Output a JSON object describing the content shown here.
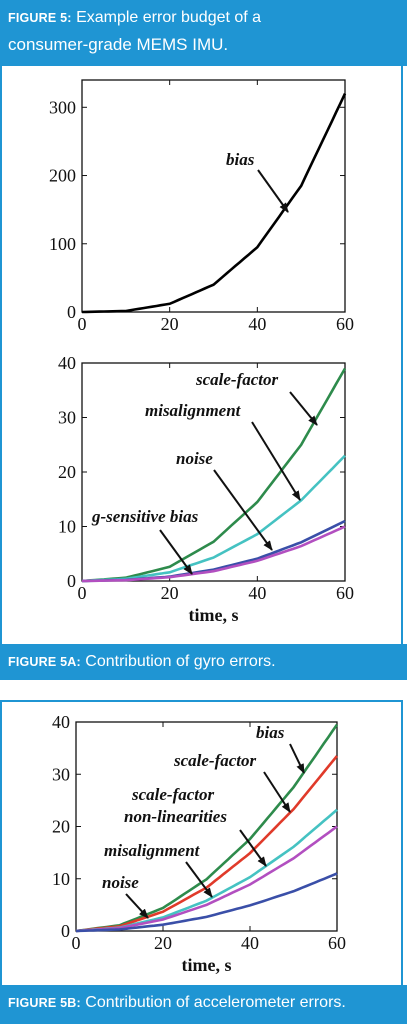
{
  "figure": {
    "label": "FIGURE 5:",
    "title_line1": "Example error budget of a",
    "title_line2": "consumer-grade MEMS IMU."
  },
  "captions": {
    "fig5a_label": "FIGURE 5A:",
    "fig5a_text": "Contribution of gyro errors.",
    "fig5b_label": "FIGURE 5B:",
    "fig5b_text": "Contribution of accelerometer errors."
  },
  "chart_data": [
    {
      "type": "line",
      "xlim": [
        0,
        60
      ],
      "ylim": [
        0,
        340
      ],
      "xticks": [
        "0",
        "20",
        "40",
        "60"
      ],
      "yticks": [
        "0",
        "100",
        "200",
        "300"
      ],
      "xlabel": "",
      "ylabel": "",
      "series": [
        {
          "name": "bias",
          "color": "#000000",
          "x": [
            0,
            10,
            20,
            30,
            40,
            50,
            60
          ],
          "y": [
            0,
            1.5,
            12,
            40,
            95,
            185,
            320
          ]
        }
      ]
    },
    {
      "type": "line",
      "xlim": [
        0,
        60
      ],
      "ylim": [
        0,
        40
      ],
      "xticks": [
        "0",
        "20",
        "40",
        "60"
      ],
      "yticks": [
        "0",
        "10",
        "20",
        "30",
        "40"
      ],
      "xlabel": "time, s",
      "ylabel": "",
      "series": [
        {
          "name": "scale-factor",
          "color": "#2e8b4c",
          "x": [
            0,
            10,
            20,
            30,
            40,
            50,
            60
          ],
          "y": [
            0,
            0.6,
            2.6,
            7.2,
            14.5,
            25,
            39
          ]
        },
        {
          "name": "misalignment",
          "color": "#45c2c2",
          "x": [
            0,
            10,
            20,
            30,
            40,
            50,
            60
          ],
          "y": [
            0,
            0.4,
            1.6,
            4.3,
            8.6,
            14.8,
            23
          ]
        },
        {
          "name": "noise",
          "color": "#3a4fa8",
          "x": [
            0,
            10,
            20,
            30,
            40,
            50,
            60
          ],
          "y": [
            0,
            0.2,
            0.8,
            2.1,
            4.1,
            7.1,
            11
          ]
        },
        {
          "name": "g-sensitive bias",
          "color": "#b24fc0",
          "x": [
            0,
            10,
            20,
            30,
            40,
            50,
            60
          ],
          "y": [
            0,
            0.15,
            0.7,
            1.8,
            3.7,
            6.4,
            10
          ]
        }
      ]
    },
    {
      "type": "line",
      "xlim": [
        0,
        60
      ],
      "ylim": [
        0,
        40
      ],
      "xticks": [
        "0",
        "20",
        "40",
        "60"
      ],
      "yticks": [
        "0",
        "10",
        "20",
        "30",
        "40"
      ],
      "xlabel": "time, s",
      "ylabel": "",
      "series": [
        {
          "name": "bias",
          "color": "#2e8b4c",
          "x": [
            0,
            10,
            20,
            30,
            40,
            50,
            60
          ],
          "y": [
            0,
            1.1,
            4.4,
            9.9,
            17.6,
            27.5,
            39.5
          ]
        },
        {
          "name": "scale-factor",
          "color": "#e03a2a",
          "x": [
            0,
            10,
            20,
            30,
            40,
            50,
            60
          ],
          "y": [
            0,
            0.9,
            3.7,
            8.3,
            14.9,
            23.3,
            33.5
          ]
        },
        {
          "name": "scale-factor non-linearities",
          "color": "#45c2c2",
          "x": [
            0,
            10,
            20,
            30,
            40,
            50,
            60
          ],
          "y": [
            0,
            0.65,
            2.6,
            5.8,
            10.3,
            16.1,
            23.2
          ]
        },
        {
          "name": "misalignment",
          "color": "#b24fc0",
          "x": [
            0,
            10,
            20,
            30,
            40,
            50,
            60
          ],
          "y": [
            0,
            0.55,
            2.2,
            5,
            8.9,
            13.9,
            20
          ]
        },
        {
          "name": "noise",
          "color": "#3a4fa8",
          "x": [
            0,
            10,
            20,
            30,
            40,
            50,
            60
          ],
          "y": [
            0,
            0.3,
            1.2,
            2.7,
            4.9,
            7.6,
            11
          ]
        }
      ]
    }
  ]
}
